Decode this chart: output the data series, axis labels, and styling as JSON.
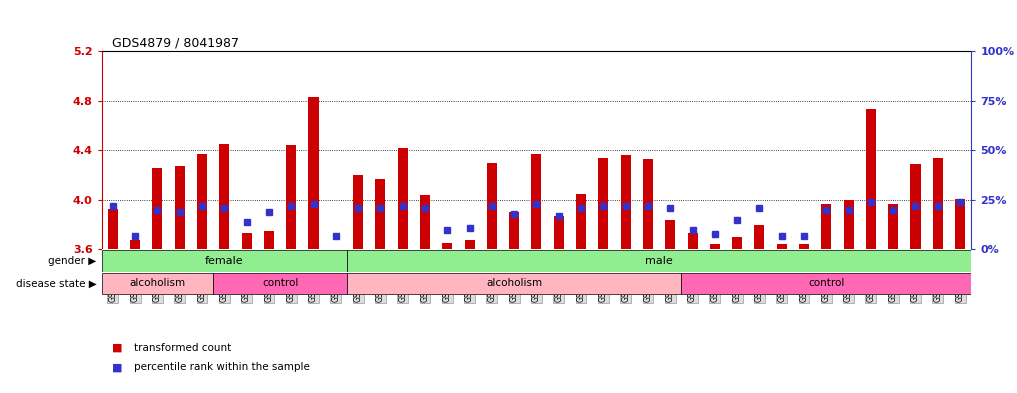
{
  "title": "GDS4879 / 8041987",
  "ylim": [
    3.6,
    5.2
  ],
  "yticks": [
    3.6,
    4.0,
    4.4,
    4.8,
    5.2
  ],
  "right_ytick_percents": [
    0,
    25,
    50,
    75,
    100
  ],
  "right_ytick_labels": [
    "0%",
    "25%",
    "50%",
    "75%",
    "100%"
  ],
  "samples": [
    "GSM1085677",
    "GSM1085681",
    "GSM1085685",
    "GSM1085689",
    "GSM1085695",
    "GSM1085698",
    "GSM1085673",
    "GSM1085679",
    "GSM1085694",
    "GSM1085696",
    "GSM1085699",
    "GSM1085701",
    "GSM1085666",
    "GSM1085668",
    "GSM1085670",
    "GSM1085671",
    "GSM1085674",
    "GSM1085678",
    "GSM1085680",
    "GSM1085682",
    "GSM1085683",
    "GSM1085684",
    "GSM1085687",
    "GSM1085691",
    "GSM1085697",
    "GSM1085700",
    "GSM1085665",
    "GSM1085667",
    "GSM1085669",
    "GSM1085672",
    "GSM1085675",
    "GSM1085676",
    "GSM1085686",
    "GSM1085688",
    "GSM1085690",
    "GSM1085692",
    "GSM1085693",
    "GSM1085702",
    "GSM1085703"
  ],
  "bar_values": [
    3.93,
    3.68,
    4.26,
    4.27,
    4.37,
    4.45,
    3.73,
    3.75,
    4.44,
    4.83,
    3.6,
    4.2,
    4.17,
    4.42,
    4.04,
    3.65,
    3.68,
    4.3,
    3.9,
    4.37,
    3.87,
    4.05,
    4.34,
    4.36,
    4.33,
    3.84,
    3.73,
    3.64,
    3.7,
    3.8,
    3.64,
    3.64,
    3.97,
    4.0,
    4.73,
    3.97,
    4.29,
    4.34,
    4.01
  ],
  "percentile_values": [
    22,
    7,
    20,
    19,
    22,
    21,
    14,
    19,
    22,
    23,
    7,
    21,
    21,
    22,
    21,
    10,
    11,
    22,
    18,
    23,
    17,
    21,
    22,
    22,
    22,
    21,
    10,
    8,
    15,
    21,
    7,
    7,
    20,
    20,
    24,
    20,
    22,
    22,
    24
  ],
  "gender_sections": [
    {
      "label": "female",
      "start": 0,
      "end": 11,
      "color": "#90EE90"
    },
    {
      "label": "male",
      "start": 11,
      "end": 39,
      "color": "#90EE90"
    }
  ],
  "disease_sections": [
    {
      "label": "alcoholism",
      "start": 0,
      "end": 5,
      "color": "#FFB6C1"
    },
    {
      "label": "control",
      "start": 5,
      "end": 11,
      "color": "#FF69B4"
    },
    {
      "label": "alcoholism",
      "start": 11,
      "end": 26,
      "color": "#FFB6C1"
    },
    {
      "label": "control",
      "start": 26,
      "end": 39,
      "color": "#FF69B4"
    }
  ],
  "bar_color": "#CC0000",
  "percentile_color": "#3333CC",
  "bar_width": 0.45,
  "base_value": 3.6,
  "left_axis_color": "#CC0000",
  "right_axis_color": "#3333CC",
  "chart_bg": "#FFFFFF",
  "tick_box_facecolor": "#DDDDDD",
  "tick_box_edgecolor": "#999999",
  "legend_bar_color": "#CC0000",
  "legend_dot_color": "#3333CC"
}
